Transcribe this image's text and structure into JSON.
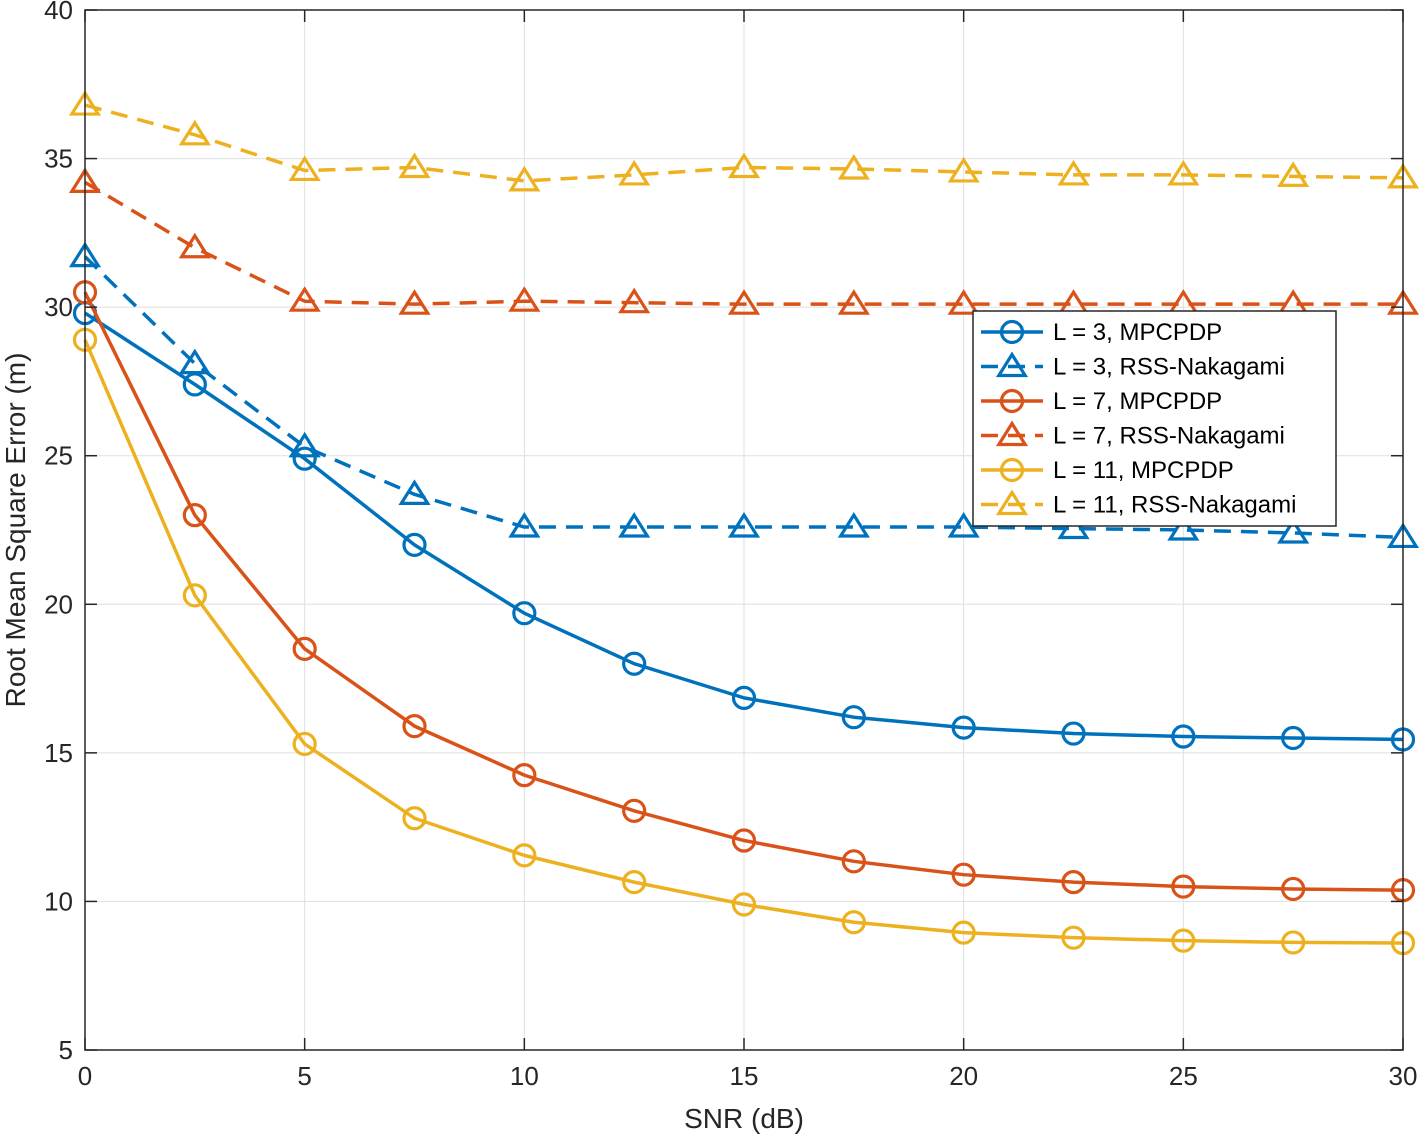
{
  "chart_data": {
    "type": "line",
    "title": "",
    "xlabel": "SNR (dB)",
    "ylabel": "Root Mean Square Error (m)",
    "xlim": [
      0,
      30
    ],
    "ylim": [
      5,
      40
    ],
    "xticks": [
      0,
      5,
      10,
      15,
      20,
      25,
      30
    ],
    "yticks": [
      5,
      10,
      15,
      20,
      25,
      30,
      35,
      40
    ],
    "grid": true,
    "legend_position": "center-right",
    "x": [
      0,
      2.5,
      5,
      7.5,
      10,
      12.5,
      15,
      17.5,
      20,
      22.5,
      25,
      27.5,
      30
    ],
    "series": [
      {
        "name": "L = 3, MPCPDP",
        "color": "#0072BD",
        "line": "solid",
        "marker": "circle",
        "values": [
          29.8,
          27.4,
          24.9,
          22.0,
          19.7,
          18.0,
          16.85,
          16.2,
          15.85,
          15.65,
          15.55,
          15.5,
          15.45
        ]
      },
      {
        "name": "L = 3, RSS-Nakagami",
        "color": "#0072BD",
        "line": "dashed",
        "marker": "triangle",
        "values": [
          31.7,
          28.1,
          25.3,
          23.7,
          22.6,
          22.6,
          22.6,
          22.6,
          22.6,
          22.55,
          22.5,
          22.4,
          22.25
        ]
      },
      {
        "name": "L = 7, MPCPDP",
        "color": "#D95319",
        "line": "solid",
        "marker": "circle",
        "values": [
          30.5,
          23.0,
          18.5,
          15.9,
          14.25,
          13.05,
          12.05,
          11.35,
          10.9,
          10.65,
          10.5,
          10.42,
          10.38
        ]
      },
      {
        "name": "L = 7, RSS-Nakagami",
        "color": "#D95319",
        "line": "dashed",
        "marker": "triangle",
        "values": [
          34.2,
          32.0,
          30.2,
          30.1,
          30.2,
          30.15,
          30.1,
          30.1,
          30.1,
          30.1,
          30.1,
          30.1,
          30.1
        ]
      },
      {
        "name": "L = 11, MPCPDP",
        "color": "#EDB120",
        "line": "solid",
        "marker": "circle",
        "values": [
          28.9,
          20.3,
          15.3,
          12.8,
          11.55,
          10.65,
          9.9,
          9.3,
          8.95,
          8.78,
          8.68,
          8.62,
          8.6
        ]
      },
      {
        "name": "L = 11, RSS-Nakagami",
        "color": "#EDB120",
        "line": "dashed",
        "marker": "triangle",
        "values": [
          36.8,
          35.8,
          34.6,
          34.7,
          34.25,
          34.45,
          34.7,
          34.65,
          34.55,
          34.45,
          34.45,
          34.4,
          34.35
        ]
      }
    ]
  }
}
